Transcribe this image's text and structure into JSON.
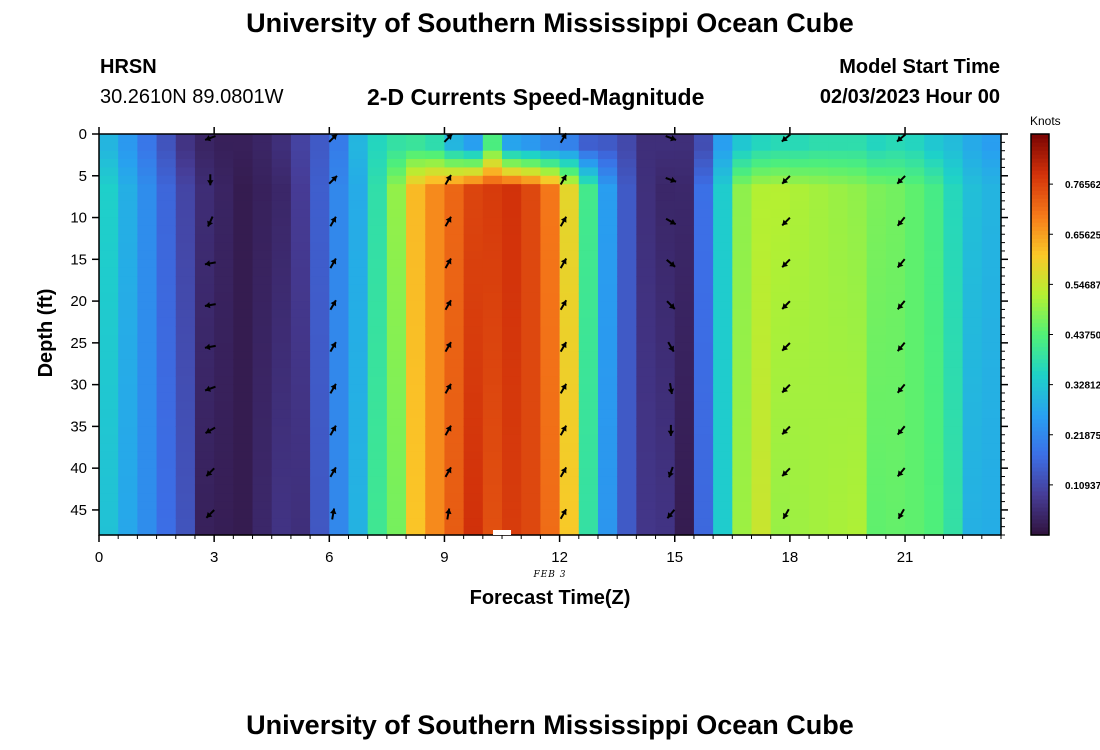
{
  "header": {
    "title": "University of Southern Mississippi Ocean Cube",
    "station": "HRSN",
    "coords": "30.2610N  89.0801W",
    "subtitle": "2-D Currents Speed-Magnitude",
    "model_label": "Model Start Time",
    "model_time": "02/03/2023 Hour 00",
    "footer_title": "University of Southern Mississippi Ocean Cube"
  },
  "chart_data": {
    "type": "heatmap",
    "title": "2-D Currents Speed-Magnitude",
    "xlabel": "Forecast Time(Z)",
    "ylabel": "Depth (ft)",
    "x_annotation": "FEB 3",
    "xlim": [
      0,
      23.5
    ],
    "ylim": [
      0,
      48
    ],
    "x_ticks": [
      0,
      3,
      6,
      9,
      12,
      15,
      18,
      21
    ],
    "y_ticks": [
      0,
      5,
      10,
      15,
      20,
      25,
      30,
      35,
      40,
      45
    ],
    "colorbar": {
      "label": "Knots",
      "range": [
        0,
        0.875
      ],
      "ticks": [
        0.10937,
        0.21875,
        0.32812,
        0.4375,
        0.54687,
        0.65625,
        0.76562
      ],
      "tick_labels": [
        "0.10937",
        "0.21875",
        "0.32812",
        "0.43750",
        "0.54687",
        "0.65625",
        "0.76562"
      ]
    },
    "time_hours": [
      0,
      0.5,
      1,
      1.5,
      2,
      2.5,
      3,
      3.5,
      4,
      4.5,
      5,
      5.5,
      6,
      6.5,
      7,
      7.5,
      8,
      8.5,
      9,
      9.5,
      10,
      10.5,
      11,
      11.5,
      12,
      12.5,
      13,
      13.5,
      14,
      14.5,
      15,
      15.5,
      16,
      16.5,
      17,
      17.5,
      18,
      18.5,
      19,
      19.5,
      20,
      20.5,
      21,
      21.5,
      22,
      22.5,
      23
    ],
    "surface_speed_knots": [
      0.3,
      0.25,
      0.19,
      0.13,
      0.07,
      0.04,
      0.03,
      0.03,
      0.04,
      0.06,
      0.1,
      0.14,
      0.2,
      0.3,
      0.36,
      0.39,
      0.4,
      0.38,
      0.3,
      0.26,
      0.43,
      0.27,
      0.25,
      0.22,
      0.21,
      0.15,
      0.14,
      0.11,
      0.06,
      0.06,
      0.06,
      0.12,
      0.26,
      0.33,
      0.36,
      0.37,
      0.37,
      0.38,
      0.38,
      0.38,
      0.36,
      0.37,
      0.36,
      0.33,
      0.31,
      0.28,
      0.26
    ],
    "subsurface_speed_knots": [
      0.35,
      0.29,
      0.23,
      0.16,
      0.1,
      0.06,
      0.04,
      0.02,
      0.03,
      0.04,
      0.09,
      0.15,
      0.22,
      0.28,
      0.38,
      0.5,
      0.63,
      0.68,
      0.72,
      0.76,
      0.78,
      0.79,
      0.76,
      0.7,
      0.58,
      0.42,
      0.26,
      0.14,
      0.06,
      0.04,
      0.05,
      0.18,
      0.34,
      0.49,
      0.52,
      0.53,
      0.52,
      0.51,
      0.5,
      0.49,
      0.48,
      0.47,
      0.45,
      0.42,
      0.36,
      0.32,
      0.3
    ],
    "arrows": {
      "hours": [
        2.9,
        6.1,
        9.1,
        12.1,
        14.9,
        17.9,
        20.9
      ],
      "depths_ft": [
        0,
        5,
        10,
        15,
        20,
        25,
        30,
        35,
        40,
        45
      ],
      "direction_deg": [
        [
          200,
          45,
          45,
          60,
          340,
          220,
          220
        ],
        [
          270,
          45,
          60,
          60,
          340,
          225,
          225
        ],
        [
          245,
          60,
          60,
          60,
          330,
          225,
          230
        ],
        [
          190,
          60,
          60,
          60,
          320,
          225,
          230
        ],
        [
          190,
          60,
          60,
          60,
          315,
          225,
          230
        ],
        [
          190,
          60,
          60,
          60,
          300,
          225,
          230
        ],
        [
          200,
          60,
          60,
          60,
          280,
          225,
          230
        ],
        [
          210,
          60,
          60,
          60,
          270,
          225,
          230
        ],
        [
          225,
          60,
          60,
          60,
          250,
          225,
          230
        ],
        [
          225,
          80,
          80,
          60,
          230,
          240,
          240
        ]
      ]
    },
    "marker_hour": 10.5
  }
}
